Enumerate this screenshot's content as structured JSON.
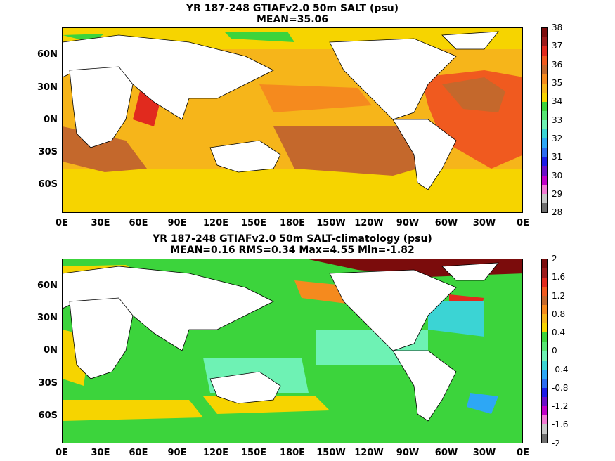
{
  "colors": {
    "ocean_top_base": "#f6c016",
    "ocean_bottom_base": "#2fd33e",
    "land": "#ffffff",
    "coast": "#000000"
  },
  "charts": [
    {
      "title_line1": "YR 187-248 GTIAFv2.0 50m SALT (psu)",
      "title_line2": "MEAN=35.06",
      "yticks": [
        "60N",
        "30N",
        "0N",
        "30S",
        "60S"
      ],
      "xticks": [
        "0E",
        "30E",
        "60E",
        "90E",
        "120E",
        "150E",
        "180E",
        "150W",
        "120W",
        "90W",
        "60W",
        "30W",
        "0E"
      ],
      "colorbar_labels": [
        "38",
        "37",
        "36",
        "35",
        "34",
        "33",
        "32",
        "31",
        "30",
        "29",
        "28"
      ],
      "colorbar_colors": [
        "#7b0c0c",
        "#9c1b1b",
        "#e12a1e",
        "#f05a1f",
        "#c4682c",
        "#f58a1e",
        "#f6b51a",
        "#f6d400",
        "#3cd43c",
        "#56e673",
        "#6ef2b4",
        "#3bd4d4",
        "#2da7f5",
        "#2b6cf0",
        "#1b1be6",
        "#6a10c8",
        "#c100c8",
        "#f27ad5",
        "#c8c8c8",
        "#6e6e6e"
      ]
    },
    {
      "title_line1": "YR 187-248 GTIAFv2.0 50m SALT-climatology (psu)",
      "title_line2": "MEAN=0.16   RMS=0.34   Max=4.55   Min=-1.82",
      "yticks": [
        "60N",
        "30N",
        "0N",
        "30S",
        "60S"
      ],
      "xticks": [
        "0E",
        "30E",
        "60E",
        "90E",
        "120E",
        "150E",
        "180E",
        "150W",
        "120W",
        "90W",
        "60W",
        "30W",
        "0E"
      ],
      "colorbar_labels": [
        "2",
        "1.6",
        "1.2",
        "0.8",
        "0.4",
        "0",
        "-0.4",
        "-0.8",
        "-1.2",
        "-1.6",
        "-2"
      ],
      "colorbar_colors": [
        "#7b0c0c",
        "#9c1b1b",
        "#e12a1e",
        "#f05a1f",
        "#c4682c",
        "#f58a1e",
        "#f6b51a",
        "#f6d400",
        "#3cd43c",
        "#56e673",
        "#6ef2b4",
        "#3bd4d4",
        "#2da7f5",
        "#2b6cf0",
        "#1b1be6",
        "#6a10c8",
        "#c100c8",
        "#f27ad5",
        "#c8c8c8",
        "#6e6e6e"
      ]
    }
  ],
  "chart_data": [
    {
      "type": "heatmap",
      "title": "YR 187-248 GTIAFv2.0 50m SALT (psu)",
      "subtitle": "MEAN=35.06",
      "x_ticks": [
        "0E",
        "30E",
        "60E",
        "90E",
        "120E",
        "150E",
        "180E",
        "150W",
        "120W",
        "90W",
        "60W",
        "30W",
        "0E"
      ],
      "y_ticks": [
        "60N",
        "30N",
        "0N",
        "30S",
        "60S"
      ],
      "colorbar": {
        "min": 28,
        "max": 38,
        "step": 0.5
      },
      "mean": 35.06
    },
    {
      "type": "heatmap",
      "title": "YR 187-248 GTIAFv2.0 50m SALT-climatology (psu)",
      "subtitle": "MEAN=0.16   RMS=0.34   Max=4.55   Min=-1.82",
      "x_ticks": [
        "0E",
        "30E",
        "60E",
        "90E",
        "120E",
        "150E",
        "180E",
        "150W",
        "120W",
        "90W",
        "60W",
        "30W",
        "0E"
      ],
      "y_ticks": [
        "60N",
        "30N",
        "0N",
        "30S",
        "60S"
      ],
      "colorbar": {
        "min": -2,
        "max": 2,
        "step": 0.2
      },
      "mean": 0.16,
      "rms": 0.34,
      "max": 4.55,
      "min": -1.82
    }
  ]
}
